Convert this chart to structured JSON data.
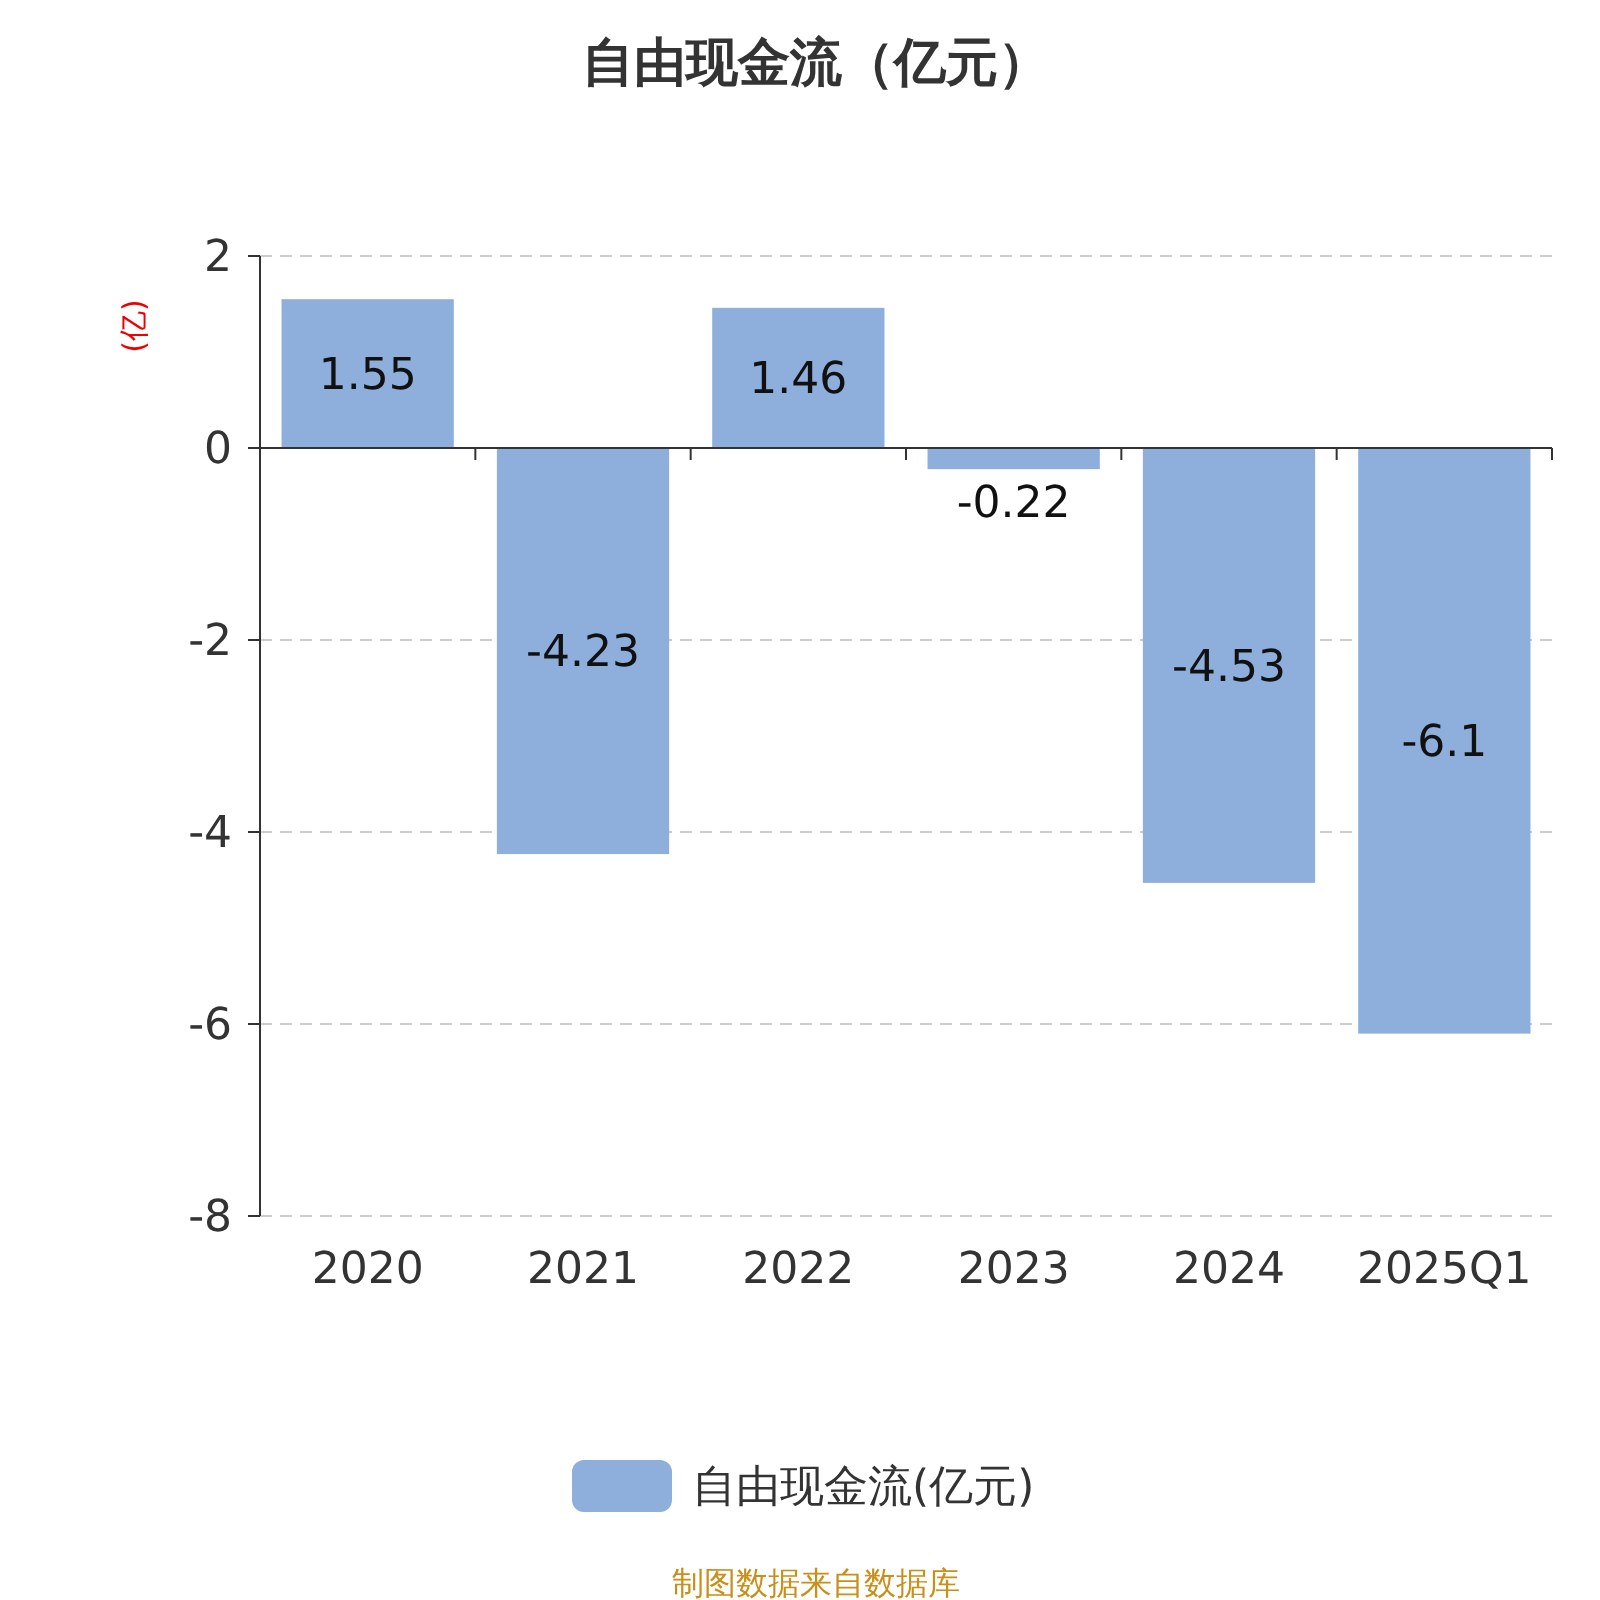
{
  "chart_data": {
    "type": "bar",
    "title": "自由现金流（亿元）",
    "ylabel": "(亿)",
    "categories": [
      "2020",
      "2021",
      "2022",
      "2023",
      "2024",
      "2025Q1"
    ],
    "series": [
      {
        "name": "自由现金流(亿元)",
        "color": "#8eaedb",
        "values": [
          1.55,
          -4.23,
          1.46,
          -0.22,
          -4.53,
          -6.1
        ]
      }
    ],
    "ylim": [
      -8,
      2
    ],
    "yticks": [
      -8,
      -6,
      -4,
      -2,
      0,
      2
    ],
    "grid": "y",
    "legend": "bottom",
    "data_labels": true,
    "annotations": [
      "制图数据来自数据库"
    ]
  }
}
